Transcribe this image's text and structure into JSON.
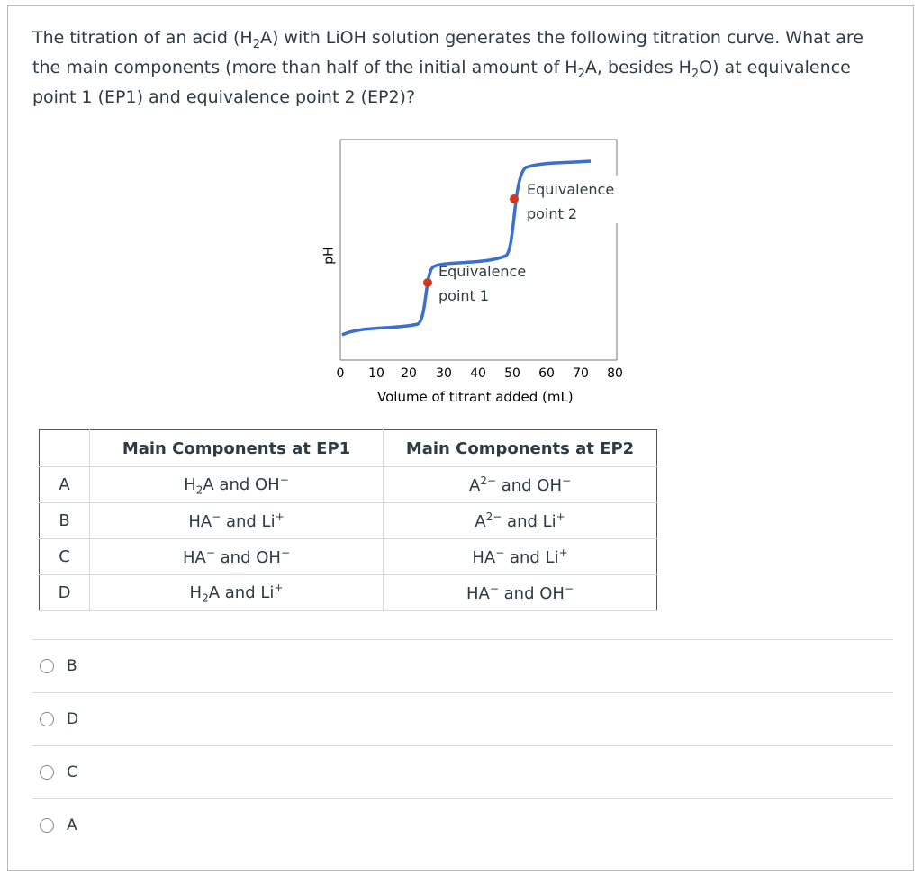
{
  "question": {
    "line1": "The titration of an acid (H",
    "line1_sub": "2",
    "line1_b": "A) with LiOH solution generates the following titration curve. What are",
    "line2": "the main components (more than half of the initial amount of H",
    "line2_sub": "2",
    "line2_b": "A, besides H",
    "line2_sub2": "2",
    "line2_c": "O) at equivalence",
    "line3": "point 1 (EP1) and equivalence point 2 (EP2)?"
  },
  "chart": {
    "ylabel": "pH",
    "xlabel": "Volume of titrant added (mL)",
    "ticks": [
      "0",
      "10",
      "20",
      "30",
      "40",
      "50",
      "60",
      "70",
      "80"
    ],
    "ep1_line1": "Equivalence",
    "ep1_line2": "point 1",
    "ep2_line1": "Equivalence",
    "ep2_line2": "point 2",
    "curve_color": "#3a6fd1",
    "point_color": "#d0381e"
  },
  "table": {
    "header_ep1": "Main Components at EP1",
    "header_ep2": "Main Components at EP2",
    "rows": [
      {
        "letter": "A",
        "ep1_a": "H",
        "ep1_sub": "2",
        "ep1_b": "A and OH",
        "ep1_sup": "−",
        "ep2_a": "A",
        "ep2_sup": "2−",
        "ep2_b": " and OH",
        "ep2_sup2": "−"
      },
      {
        "letter": "B",
        "ep1_a": "HA",
        "ep1_sup": "−",
        "ep1_b": " and Li",
        "ep1_sup2": "+",
        "ep2_a": "A",
        "ep2_sup": "2−",
        "ep2_b": " and Li",
        "ep2_sup2": "+"
      },
      {
        "letter": "C",
        "ep1_a": "HA",
        "ep1_sup": "−",
        "ep1_b": " and OH",
        "ep1_sup2": "−",
        "ep2_a": "HA",
        "ep2_sup": "−",
        "ep2_b": " and Li",
        "ep2_sup2": "+"
      },
      {
        "letter": "D",
        "ep1_a": "H",
        "ep1_sub": "2",
        "ep1_b": "A and Li",
        "ep1_sup": "+",
        "ep2_a": "HA",
        "ep2_sup": "−",
        "ep2_b": " and OH",
        "ep2_sup2": "−"
      }
    ]
  },
  "answers": [
    "B",
    "D",
    "C",
    "A"
  ]
}
